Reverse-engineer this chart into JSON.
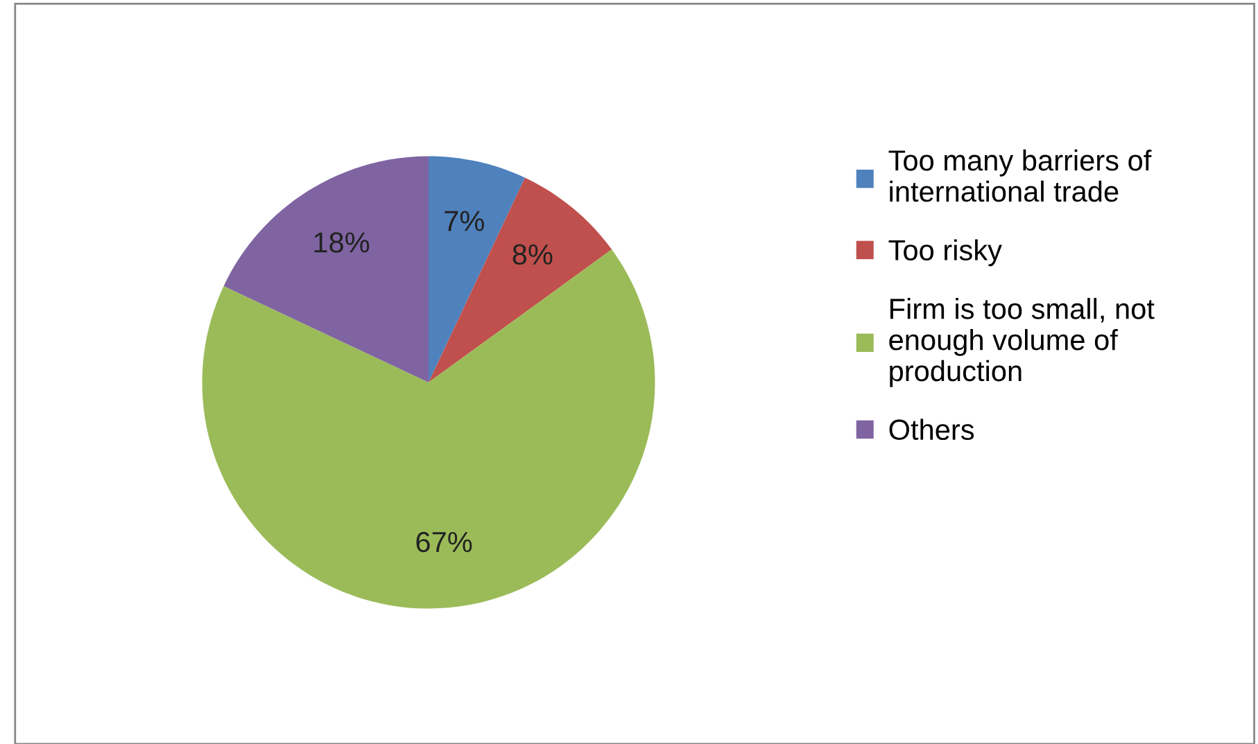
{
  "chart_data": {
    "type": "pie",
    "categories": [
      "Too many barriers of international trade",
      "Too risky",
      "Firm is too small, not enough volume of production",
      "Others"
    ],
    "values": [
      7,
      8,
      67,
      18
    ],
    "colors": [
      "#4f81bd",
      "#c0504d",
      "#9bbb59",
      "#8064a2"
    ],
    "value_labels": [
      "7%",
      "8%",
      "67%",
      "18%"
    ],
    "legend": "right"
  }
}
